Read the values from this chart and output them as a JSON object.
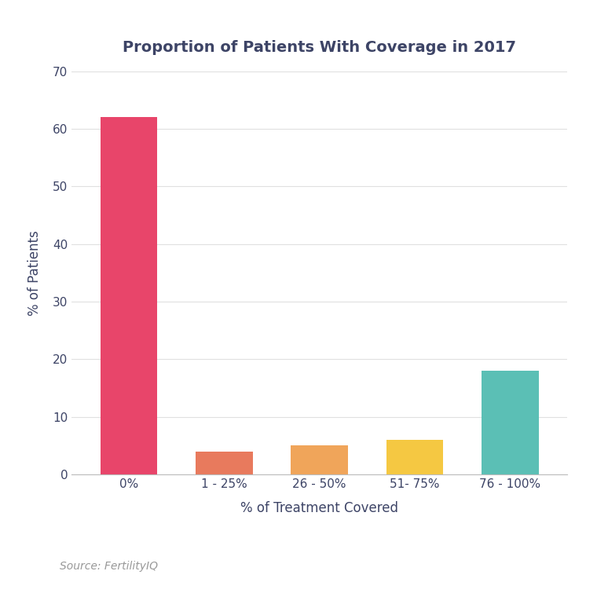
{
  "categories": [
    "0%",
    "1 - 25%",
    "26 - 50%",
    "51- 75%",
    "76 - 100%"
  ],
  "values": [
    62,
    4,
    5,
    6,
    18
  ],
  "bar_colors": [
    "#e8456a",
    "#e87a5d",
    "#f0a55a",
    "#f5c842",
    "#5bbfb5"
  ],
  "title": "Proportion of Patients With Coverage in 2017",
  "xlabel": "% of Treatment Covered",
  "ylabel": "% of Patients",
  "ylim": [
    0,
    70
  ],
  "yticks": [
    0,
    10,
    20,
    30,
    40,
    50,
    60,
    70
  ],
  "source_text": "Source: FertilityIQ",
  "title_fontsize": 14,
  "label_fontsize": 12,
  "tick_fontsize": 11,
  "source_fontsize": 10,
  "background_color": "#ffffff",
  "grid_color": "#e0e0e0",
  "text_color": "#3d4466",
  "bar_width": 0.6
}
